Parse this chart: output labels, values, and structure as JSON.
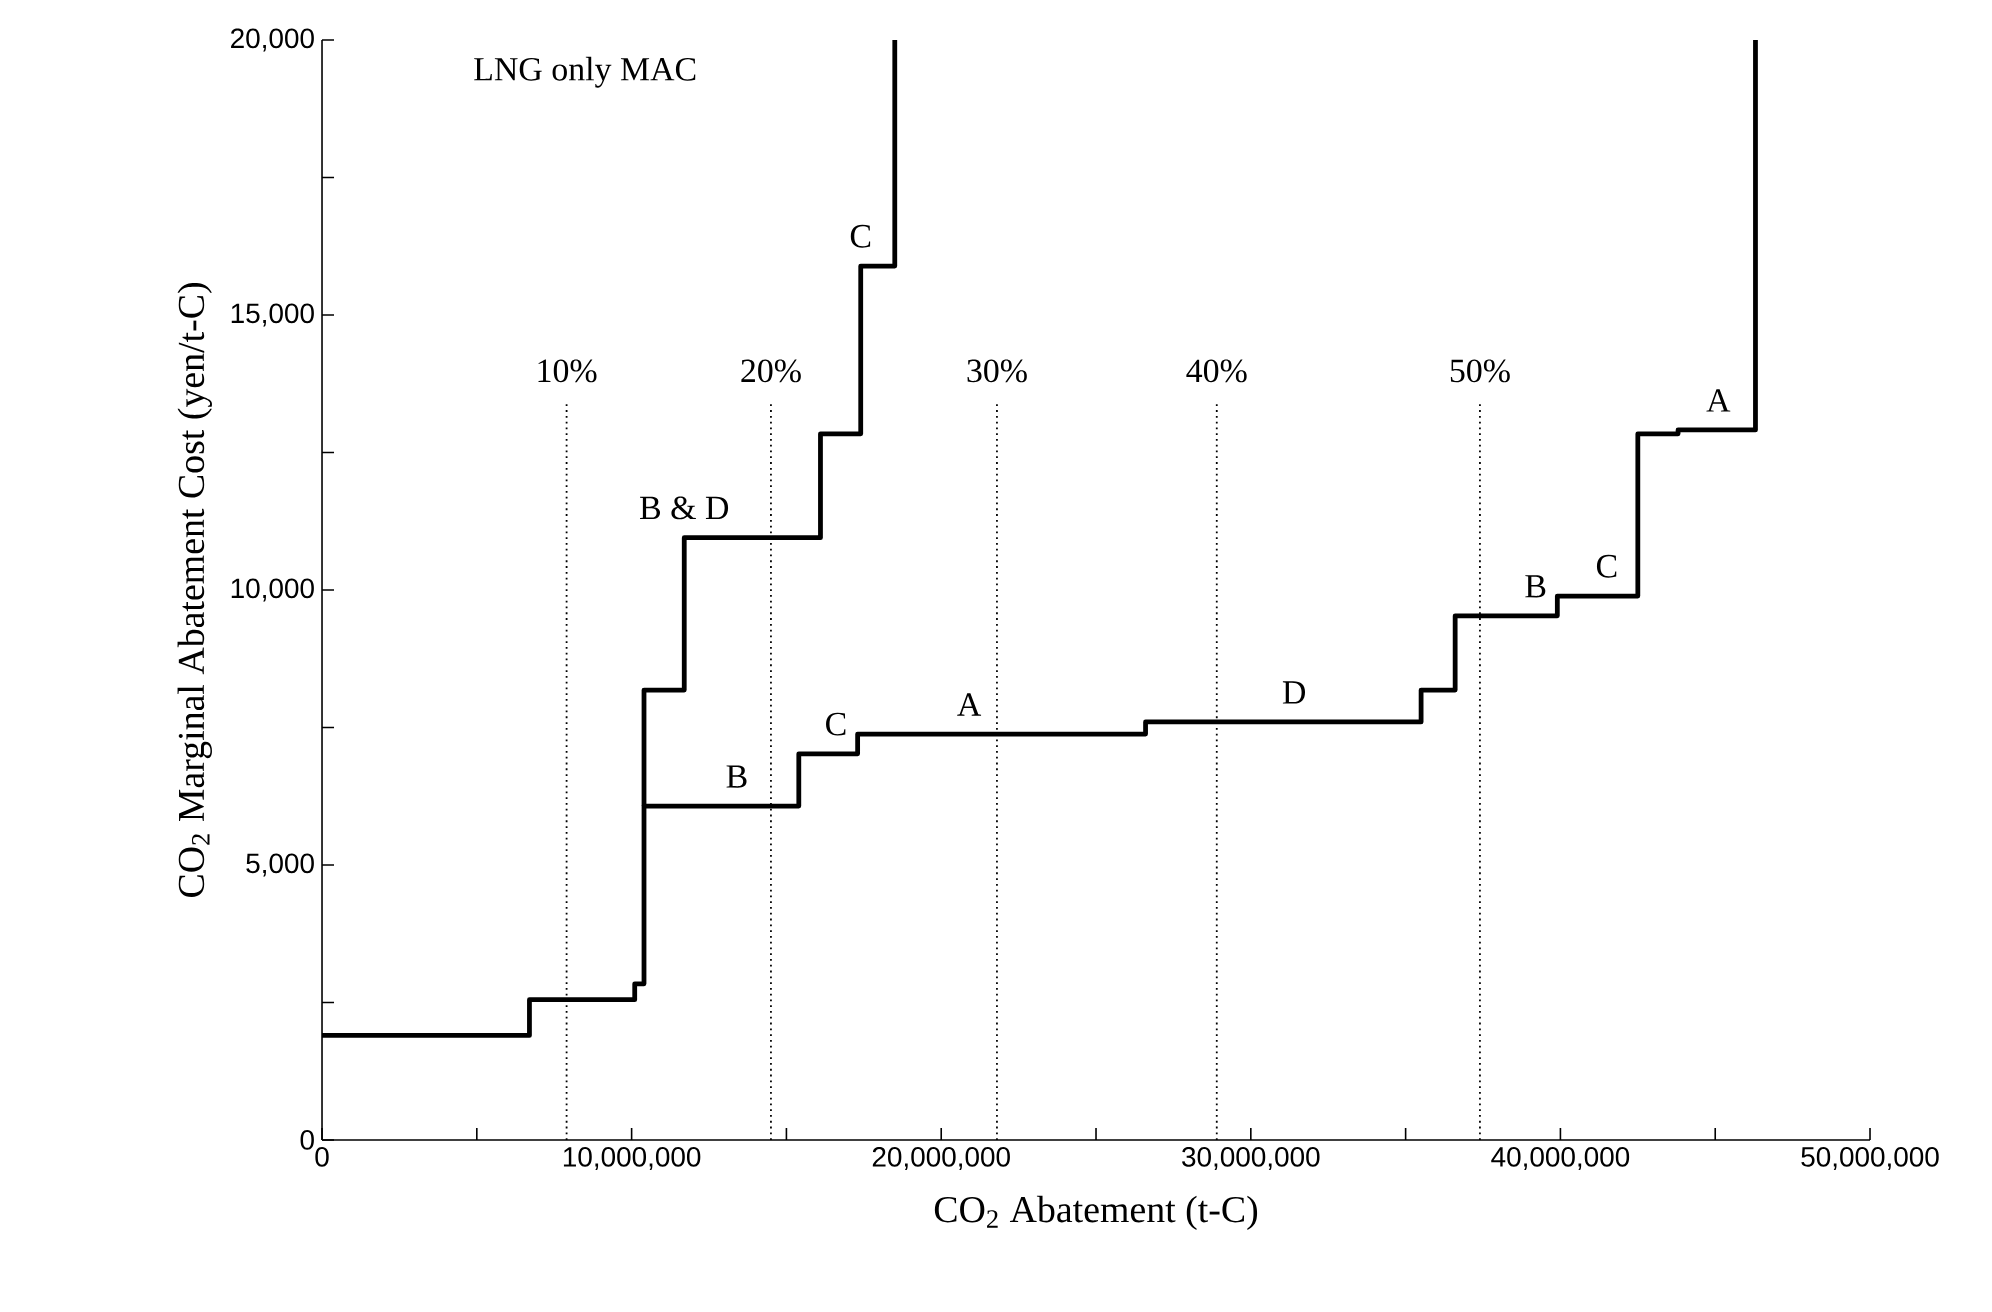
{
  "chart_data": {
    "type": "step",
    "xlabel": "CO$_{2}$ Abatement (t-C)",
    "ylabel": "CO$_{2}$ Marginal Abatement Cost (yen/t-C)",
    "xlim": [
      0,
      50000000
    ],
    "ylim": [
      0,
      20000
    ],
    "xticks": [
      0,
      {
        "value": 5000000,
        "label": null
      },
      {
        "value": 10000000,
        "label": "10,000,000"
      },
      {
        "value": 15000000,
        "label": null
      },
      {
        "value": 20000000,
        "label": "20,000,000"
      },
      {
        "value": 25000000,
        "label": null
      },
      {
        "value": 30000000,
        "label": "30,000,000"
      },
      {
        "value": 35000000,
        "label": null
      },
      {
        "value": 40000000,
        "label": "40,000,000"
      },
      {
        "value": 45000000,
        "label": null
      },
      {
        "value": 50000000,
        "label": "50,000,000"
      }
    ],
    "yticks": [
      0,
      {
        "value": 2500,
        "label": null
      },
      {
        "value": 5000,
        "label": "5,000"
      },
      {
        "value": 7500,
        "label": null
      },
      {
        "value": 10000,
        "label": "10,000"
      },
      {
        "value": 12500,
        "label": null
      },
      {
        "value": 15000,
        "label": "15,000"
      },
      {
        "value": 17500,
        "label": null
      },
      {
        "value": 20000,
        "label": "20,000"
      }
    ],
    "series": [
      {
        "color": "#000000",
        "x": [
          0,
          6700000,
          10100000,
          10400000,
          15400000,
          17300000,
          26600000,
          35500000,
          36600000,
          39900000,
          42500000,
          43800000,
          46300000
        ],
        "values": [
          1900,
          2550,
          2840,
          6070,
          7020,
          7380,
          7600,
          8180,
          9530,
          9890,
          12840,
          12910,
          20000
        ]
      },
      {
        "color": "#000000",
        "x": [
          10400000,
          10400000,
          11700000,
          16100000,
          17400000,
          18500000
        ],
        "values": [
          6070,
          8180,
          10950,
          12840,
          15890,
          20000
        ]
      }
    ],
    "ref_lines": [
      {
        "axis": "x",
        "value": 7900000,
        "line_style": "dotted",
        "color": "#000000"
      },
      {
        "axis": "x",
        "value": 14500000,
        "line_style": "dotted",
        "color": "#000000"
      },
      {
        "axis": "x",
        "value": 21800000,
        "line_style": "dotted",
        "color": "#000000"
      },
      {
        "axis": "x",
        "value": 28900000,
        "line_style": "dotted",
        "color": "#000000"
      },
      {
        "axis": "x",
        "value": 37400000,
        "line_style": "dotted",
        "color": "#000000"
      }
    ],
    "annotations": [
      {
        "text": "10%",
        "x": 7900000,
        "y": 13440
      },
      {
        "text": "20%",
        "x": 14500000,
        "y": 13440
      },
      {
        "text": "30%",
        "x": 21800000,
        "y": 13440
      },
      {
        "text": "40%",
        "x": 28900000,
        "y": 13440
      },
      {
        "text": "50%",
        "x": 37400000,
        "y": 13440
      },
      "LNG only MAC",
      {
        "text": "C",
        "x": 17400000,
        "y": 15890
      },
      {
        "text": "B & D",
        "x": 11700000,
        "y": 10950
      },
      {
        "text": "B",
        "x": 13400000,
        "y": 6070
      },
      {
        "text": "C",
        "x": 16600000,
        "y": 7020
      },
      {
        "text": "A",
        "x": 20900000,
        "y": 7380
      },
      {
        "text": "D",
        "x": 31400000,
        "y": 7600
      },
      {
        "text": "B",
        "x": 39200000,
        "y": 9530
      },
      {
        "text": "C",
        "x": 41500000,
        "y": 9890
      },
      {
        "text": "A",
        "x": 45100000,
        "y": 12910
      }
    ],
    "line_style": "solid"
  }
}
